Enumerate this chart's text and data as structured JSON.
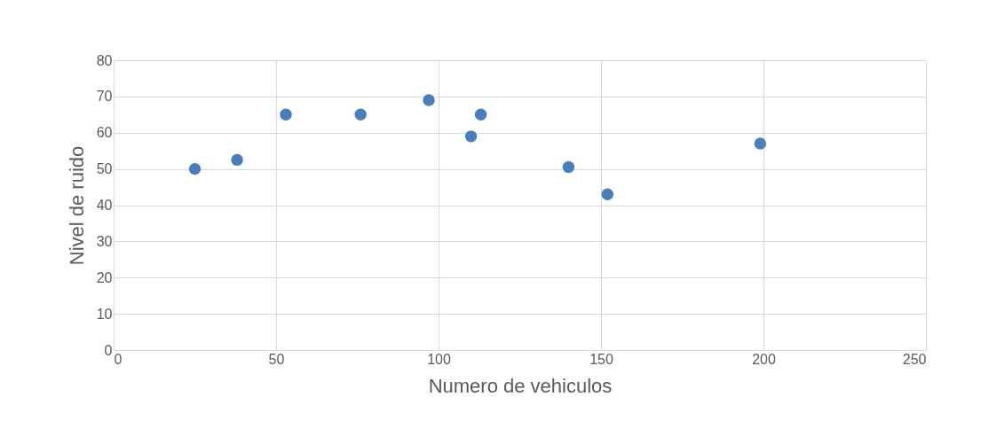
{
  "chart_data": {
    "type": "scatter",
    "xlabel": "Numero de vehiculos",
    "ylabel": "Nivel de ruido",
    "x": [
      25,
      38,
      53,
      76,
      97,
      110,
      113,
      140,
      152,
      199
    ],
    "series": [
      {
        "color": "#4a7ebb",
        "values": [
          50,
          52.5,
          65,
          65,
          69,
          59,
          65,
          50.5,
          43,
          57
        ]
      }
    ],
    "xlim": [
      0,
      250
    ],
    "xticks": [
      0,
      50,
      100,
      150,
      200,
      250
    ],
    "ylim": [
      0,
      80
    ],
    "yticks": [
      0,
      10,
      20,
      30,
      40,
      50,
      60,
      70,
      80
    ],
    "grid": true,
    "marker": "circle",
    "legend": false
  }
}
